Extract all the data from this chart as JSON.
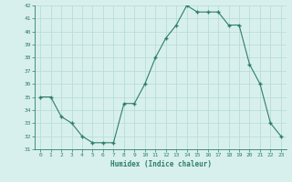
{
  "x": [
    0,
    1,
    2,
    3,
    4,
    5,
    6,
    7,
    8,
    9,
    10,
    11,
    12,
    13,
    14,
    15,
    16,
    17,
    18,
    19,
    20,
    21,
    22,
    23
  ],
  "y": [
    35,
    35,
    33.5,
    33,
    32,
    31.5,
    31.5,
    31.5,
    34.5,
    34.5,
    36,
    38,
    39.5,
    40.5,
    42,
    41.5,
    41.5,
    41.5,
    40.5,
    40.5,
    37.5,
    36,
    33,
    32
  ],
  "xlabel": "Humidex (Indice chaleur)",
  "ylim": [
    31,
    42
  ],
  "xlim": [
    -0.5,
    23.5
  ],
  "yticks": [
    31,
    32,
    33,
    34,
    35,
    36,
    37,
    38,
    39,
    40,
    41,
    42
  ],
  "xticks": [
    0,
    1,
    2,
    3,
    4,
    5,
    6,
    7,
    8,
    9,
    10,
    11,
    12,
    13,
    14,
    15,
    16,
    17,
    18,
    19,
    20,
    21,
    22,
    23
  ],
  "line_color": "#2e7d6e",
  "marker_color": "#2e7d6e",
  "bg_color": "#d8f0ed",
  "grid_color": "#b8ddd8",
  "tick_label_color": "#2e7d6e",
  "axis_label_color": "#2e7d6e"
}
